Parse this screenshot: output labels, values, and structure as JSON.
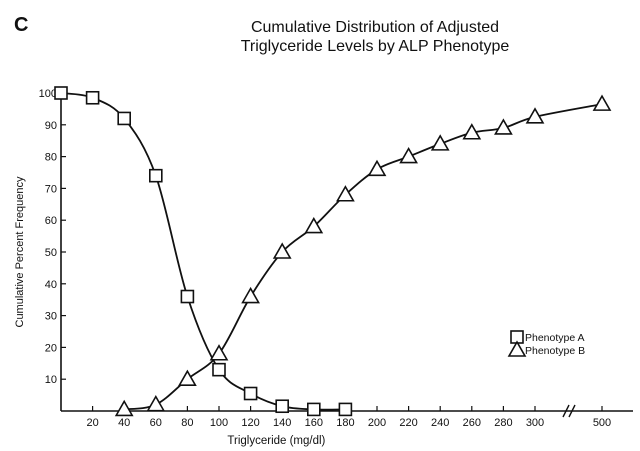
{
  "chart_data": {
    "type": "line",
    "panel_label": "C",
    "title": [
      "Cumulative Distribution of Adjusted",
      "Triglyceride Levels by ALP Phenotype"
    ],
    "xlabel": "Triglyceride  (mg/dl)",
    "ylabel": "Cumulative Percent Frequency",
    "x_ticks": [
      20,
      40,
      60,
      80,
      100,
      120,
      140,
      160,
      180,
      200,
      220,
      240,
      260,
      280,
      300,
      500
    ],
    "x_axis_break": "between 300 and 500",
    "y_ticks": [
      10,
      20,
      30,
      40,
      50,
      60,
      70,
      80,
      90,
      100
    ],
    "ylim": [
      0,
      100
    ],
    "grid": false,
    "legend_position": "lower-right",
    "series": [
      {
        "name": "Phenotype A",
        "marker": "square",
        "x": [
          0,
          20,
          40,
          60,
          80,
          100,
          120,
          140,
          160,
          180
        ],
        "y": [
          100,
          98.5,
          92,
          74,
          36,
          13,
          5.5,
          1.5,
          0.5,
          0.5
        ]
      },
      {
        "name": "Phenotype B",
        "marker": "triangle",
        "x": [
          40,
          60,
          80,
          100,
          120,
          140,
          160,
          180,
          200,
          220,
          240,
          260,
          280,
          300,
          500
        ],
        "y": [
          0.5,
          2,
          10,
          18,
          36,
          50,
          58,
          68,
          76,
          80,
          84,
          87.5,
          89,
          92.5,
          96.5
        ]
      }
    ]
  }
}
